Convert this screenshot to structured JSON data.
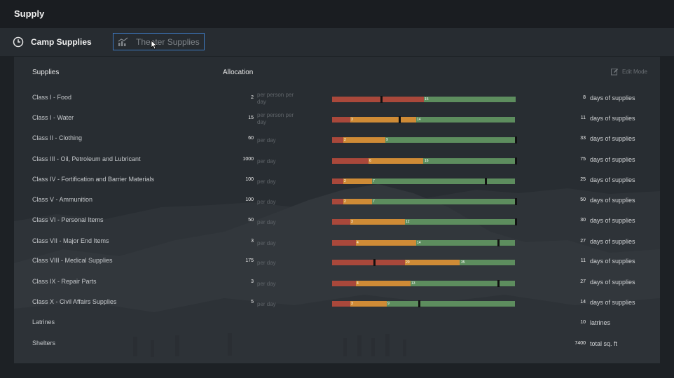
{
  "header": {
    "title": "Supply"
  },
  "tabs": {
    "camp": "Camp Supplies",
    "theater": "Theater Supplies"
  },
  "table": {
    "col_supplies": "Supplies",
    "col_allocation": "Allocation",
    "edit_mode": "Edit Mode"
  },
  "rows": [
    {
      "name": "Class I - Food",
      "qty": "2",
      "unit": "per person per day",
      "days": "8",
      "days_label": "days of supplies",
      "segs": [
        [
          "red",
          0,
          0.5
        ],
        [
          "green",
          0.5,
          1
        ]
      ],
      "ticks": [
        [
          "15",
          0.5
        ]
      ],
      "marker": 0.265
    },
    {
      "name": "Class I - Water",
      "qty": "15",
      "unit": "per person per day",
      "days": "11",
      "days_label": "days of supplies",
      "segs": [
        [
          "red",
          0,
          0.1
        ],
        [
          "orange",
          0.1,
          0.46
        ],
        [
          "green",
          0.46,
          1
        ]
      ],
      "ticks": [
        [
          "3",
          0.1
        ],
        [
          "14",
          0.46
        ]
      ],
      "marker": 0.363
    },
    {
      "name": "Class II - Clothing",
      "qty": "60",
      "unit": "per day",
      "days": "33",
      "days_label": "days of supplies",
      "segs": [
        [
          "red",
          0,
          0.06
        ],
        [
          "orange",
          0.06,
          0.29
        ],
        [
          "green",
          0.29,
          1
        ]
      ],
      "ticks": [
        [
          "2",
          0.06
        ],
        [
          "9",
          0.29
        ]
      ],
      "marker": 1.0
    },
    {
      "name": "Class III - Oil, Petroleum and Lubricant",
      "qty": "1000",
      "unit": "per day",
      "days": "75",
      "days_label": "days of supplies",
      "segs": [
        [
          "red",
          0,
          0.2
        ],
        [
          "orange",
          0.2,
          0.5
        ],
        [
          "green",
          0.5,
          1
        ]
      ],
      "ticks": [
        [
          "6",
          0.2
        ],
        [
          "16",
          0.5
        ]
      ],
      "marker": 1.0
    },
    {
      "name": "Class IV - Fortification and Barrier Materials",
      "qty": "100",
      "unit": "per day",
      "days": "25",
      "days_label": "days of supplies",
      "segs": [
        [
          "red",
          0,
          0.06
        ],
        [
          "orange",
          0.06,
          0.22
        ],
        [
          "green",
          0.22,
          1
        ]
      ],
      "ticks": [
        [
          "2",
          0.06
        ],
        [
          "7",
          0.22
        ]
      ],
      "marker": 0.835
    },
    {
      "name": "Class V - Ammunition",
      "qty": "100",
      "unit": "per day",
      "days": "50",
      "days_label": "days of supplies",
      "segs": [
        [
          "red",
          0,
          0.06
        ],
        [
          "orange",
          0.06,
          0.22
        ],
        [
          "green",
          0.22,
          1
        ]
      ],
      "ticks": [
        [
          "2",
          0.06
        ],
        [
          "7",
          0.22
        ]
      ],
      "marker": 1.0
    },
    {
      "name": "Class VI - Personal Items",
      "qty": "50",
      "unit": "per day",
      "days": "30",
      "days_label": "days of supplies",
      "segs": [
        [
          "red",
          0,
          0.1
        ],
        [
          "orange",
          0.1,
          0.4
        ],
        [
          "green",
          0.4,
          1
        ]
      ],
      "ticks": [
        [
          "3",
          0.1
        ],
        [
          "12",
          0.4
        ]
      ],
      "marker": 1.0
    },
    {
      "name": "Class VII - Major End Items",
      "qty": "3",
      "unit": "per day",
      "days": "27",
      "days_label": "days of supplies",
      "segs": [
        [
          "red",
          0,
          0.13
        ],
        [
          "orange",
          0.13,
          0.46
        ],
        [
          "green",
          0.46,
          1
        ]
      ],
      "ticks": [
        [
          "4",
          0.13
        ],
        [
          "14",
          0.46
        ]
      ],
      "marker": 0.905
    },
    {
      "name": "Class VIII - Medical Supplies",
      "qty": "175",
      "unit": "per day",
      "days": "11",
      "days_label": "days of supplies",
      "segs": [
        [
          "red",
          0,
          0.4
        ],
        [
          "orange",
          0.4,
          0.7
        ],
        [
          "green",
          0.7,
          1
        ]
      ],
      "ticks": [
        [
          "20",
          0.4
        ],
        [
          "35",
          0.7
        ]
      ],
      "marker": 0.225
    },
    {
      "name": "Class IX - Repair Parts",
      "qty": "3",
      "unit": "per day",
      "days": "27",
      "days_label": "days of supplies",
      "segs": [
        [
          "red",
          0,
          0.13
        ],
        [
          "orange",
          0.13,
          0.43
        ],
        [
          "green",
          0.43,
          1
        ]
      ],
      "ticks": [
        [
          "4",
          0.13
        ],
        [
          "13",
          0.43
        ]
      ],
      "marker": 0.905
    },
    {
      "name": "Class X - Civil Affairs Supplies",
      "qty": "5",
      "unit": "per day",
      "days": "14",
      "days_label": "days of supplies",
      "segs": [
        [
          "red",
          0,
          0.1
        ],
        [
          "orange",
          0.1,
          0.3
        ],
        [
          "green",
          0.3,
          1
        ]
      ],
      "ticks": [
        [
          "3",
          0.1
        ],
        [
          "9",
          0.3
        ]
      ],
      "marker": 0.47
    },
    {
      "name": "Latrines",
      "qty": "",
      "unit": "",
      "days": "10",
      "days_label": "latrines",
      "segs": [],
      "ticks": [],
      "marker": null
    },
    {
      "name": "Shelters",
      "qty": "",
      "unit": "",
      "days": "7400",
      "days_label": "total sq. ft",
      "segs": [],
      "ticks": [],
      "marker": null
    }
  ]
}
